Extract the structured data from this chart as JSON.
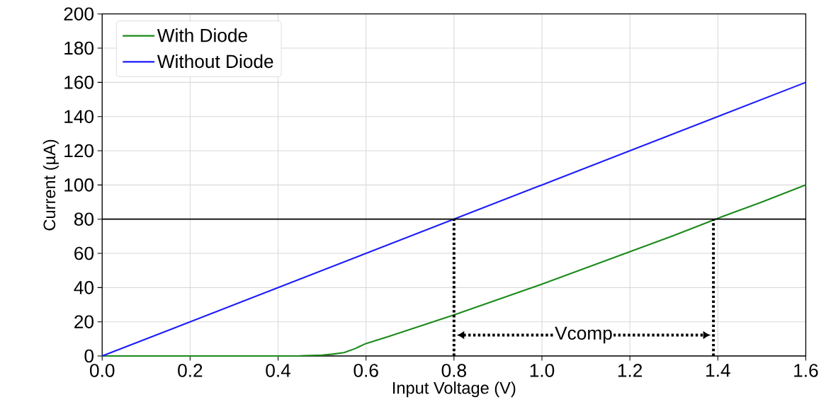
{
  "chart_data": {
    "type": "line",
    "xlabel": "Input Voltage (V)",
    "ylabel": "Current (µA)",
    "x": [
      0,
      0.1,
      0.2,
      0.3,
      0.4,
      0.45,
      0.5,
      0.525,
      0.55,
      0.575,
      0.6,
      0.65,
      0.7,
      0.8,
      0.9,
      1.0,
      1.1,
      1.2,
      1.3,
      1.4,
      1.5,
      1.6
    ],
    "series": [
      {
        "name": "With Diode",
        "color": "#1a8a1a",
        "values": [
          0,
          0,
          0,
          0,
          0,
          0.1,
          0.5,
          1.1,
          2,
          4.3,
          7.3,
          11.3,
          15.5,
          24,
          33,
          42,
          51.5,
          61,
          70.5,
          80.5,
          90,
          100
        ]
      },
      {
        "name": "Without Diode",
        "color": "#1a1aff",
        "x": [
          0,
          1.6
        ],
        "values": [
          0,
          160
        ]
      }
    ],
    "xlim": [
      0,
      1.6
    ],
    "ylim": [
      0,
      200
    ],
    "xticks": [
      {
        "value": 0,
        "label": "0.0"
      },
      {
        "value": 0.2,
        "label": "0.2"
      },
      {
        "value": 0.4,
        "label": "0.4"
      },
      {
        "value": 0.6,
        "label": "0.6"
      },
      {
        "value": 0.8,
        "label": "0.8"
      },
      {
        "value": 1.0,
        "label": "1.0"
      },
      {
        "value": 1.2,
        "label": "1.2"
      },
      {
        "value": 1.4,
        "label": "1.4"
      },
      {
        "value": 1.6,
        "label": "1.6"
      }
    ],
    "yticks": [
      0,
      20,
      40,
      60,
      80,
      100,
      120,
      140,
      160,
      180,
      200
    ],
    "ref_lines": [
      {
        "axis": "y",
        "value": 80,
        "color": "#000000",
        "line_style": "solid"
      },
      {
        "axis": "x",
        "value": 0.8,
        "color": "#000000",
        "line_style": "dotted"
      },
      {
        "axis": "x",
        "value": 1.39,
        "color": "#000000",
        "line_style": "dotted"
      }
    ],
    "annotations": [
      "Vcomp"
    ],
    "grid": true,
    "legend": "top left"
  }
}
